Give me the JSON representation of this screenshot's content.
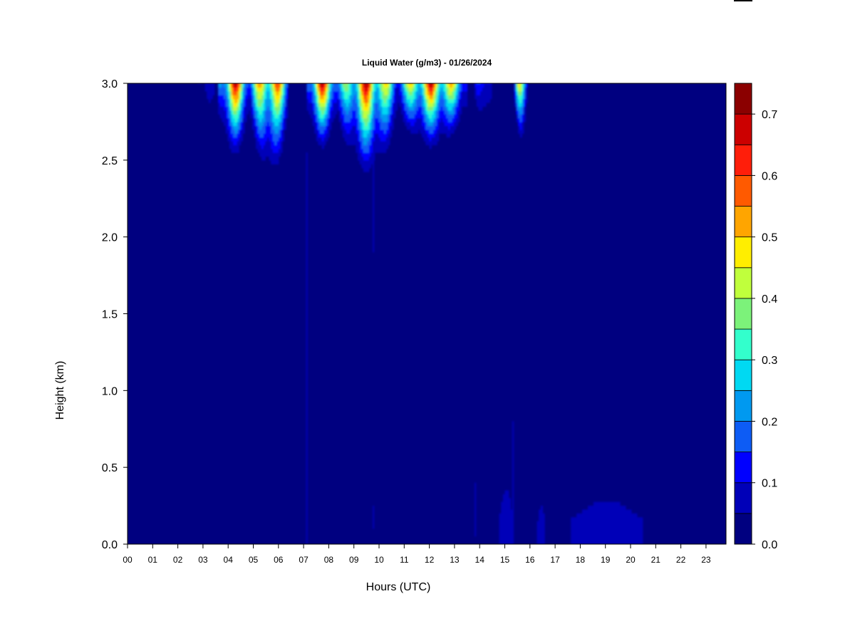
{
  "chart_data": {
    "type": "heatmap",
    "title": "Liquid Water (g/m3) - 01/26/2024",
    "xlabel": "Hours (UTC)",
    "ylabel": "Height (km)",
    "x_unit": "hours UTC",
    "y_unit": "km",
    "xlim": [
      0,
      23.9
    ],
    "ylim": [
      0,
      3.0
    ],
    "xticks": [
      "00",
      "01",
      "02",
      "03",
      "04",
      "05",
      "06",
      "07",
      "08",
      "09",
      "10",
      "11",
      "12",
      "13",
      "14",
      "15",
      "16",
      "17",
      "18",
      "19",
      "20",
      "21",
      "22",
      "23"
    ],
    "yticks": [
      "0.0",
      "0.5",
      "1.0",
      "1.5",
      "2.0",
      "2.5",
      "3.0"
    ],
    "colorbar": {
      "label_ticks": [
        "0.0",
        "0.1",
        "0.2",
        "0.3",
        "0.4",
        "0.5",
        "0.6",
        "0.7"
      ],
      "levels": [
        0.0,
        0.05,
        0.1,
        0.15,
        0.2,
        0.25,
        0.3,
        0.35,
        0.4,
        0.45,
        0.5,
        0.55,
        0.6,
        0.65,
        0.7,
        0.75
      ],
      "colors": [
        "#000080",
        "#0000b8",
        "#0000ff",
        "#0d5cf5",
        "#0099f0",
        "#00d9f2",
        "#33ffcc",
        "#7cf27a",
        "#c0ff3c",
        "#ffee00",
        "#ffa500",
        "#ff5a00",
        "#ff1e0a",
        "#cc0000",
        "#8b0000"
      ]
    },
    "features": [
      {
        "x_start": 2.7,
        "x_end": 3.5,
        "base_km": 2.5,
        "peak": 0.12
      },
      {
        "x_start": 3.6,
        "x_end": 4.9,
        "base_km": 2.45,
        "peak": 0.72
      },
      {
        "x_start": 4.9,
        "x_end": 6.4,
        "base_km": 2.3,
        "peak": 0.72
      },
      {
        "x_start": 7.1,
        "x_end": 8.4,
        "base_km": 2.5,
        "peak": 0.72
      },
      {
        "x_start": 8.4,
        "x_end": 10.7,
        "base_km": 2.3,
        "peak": 0.72
      },
      {
        "x_start": 10.7,
        "x_end": 13.5,
        "base_km": 2.5,
        "peak": 0.7
      },
      {
        "x_start": 13.8,
        "x_end": 14.5,
        "base_km": 2.6,
        "peak": 0.25
      },
      {
        "x_start": 15.4,
        "x_end": 15.9,
        "base_km": 2.55,
        "peak": 0.55
      },
      {
        "x_start": 17.6,
        "x_end": 20.5,
        "base_km": 0.0,
        "top_km": 0.28,
        "peak": 0.05
      },
      {
        "x_start": 14.8,
        "x_end": 15.3,
        "base_km": 0.0,
        "top_km": 0.35,
        "peak": 0.05
      },
      {
        "x_start": 16.3,
        "x_end": 16.6,
        "base_km": 0.0,
        "top_km": 0.25,
        "peak": 0.05
      }
    ],
    "grid": false,
    "legend": "colorbar-right"
  },
  "colors": {
    "background": "#ffffff",
    "axis": "#000000"
  }
}
